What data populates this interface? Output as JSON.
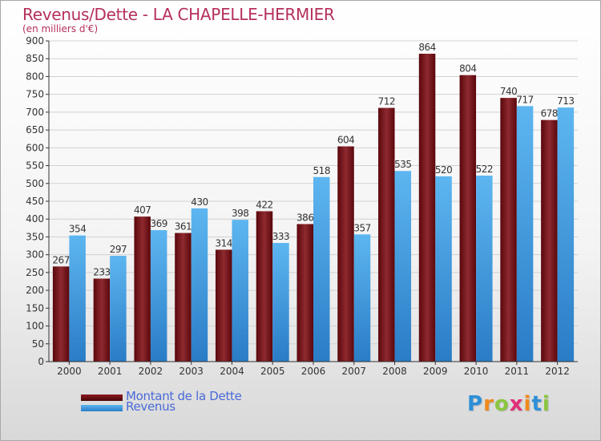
{
  "chart_data": {
    "type": "bar",
    "title": "Revenus/Dette - LA CHAPELLE-HERMIER",
    "subtitle": "(en milliers d'€)",
    "categories": [
      "2000",
      "2001",
      "2002",
      "2003",
      "2004",
      "2005",
      "2006",
      "2007",
      "2008",
      "2009",
      "2010",
      "2011",
      "2012"
    ],
    "series": [
      {
        "name": "Montant de la Dette",
        "color": "#6e0f14",
        "values": [
          267,
          233,
          407,
          361,
          314,
          422,
          386,
          604,
          712,
          864,
          804,
          740,
          678
        ]
      },
      {
        "name": "Revenus",
        "color": "#4aa3e6",
        "values": [
          354,
          297,
          369,
          430,
          398,
          333,
          518,
          357,
          535,
          520,
          522,
          717,
          713
        ]
      }
    ],
    "yticks": [
      0,
      50,
      100,
      150,
      200,
      250,
      300,
      350,
      400,
      450,
      500,
      550,
      600,
      650,
      700,
      750,
      800,
      850,
      900
    ],
    "ylim": [
      0,
      900
    ],
    "grid": true,
    "legend_position": "bottom-left"
  },
  "logo": {
    "letters": [
      "P",
      "r",
      "o",
      "x",
      "i",
      "t",
      "i"
    ]
  }
}
